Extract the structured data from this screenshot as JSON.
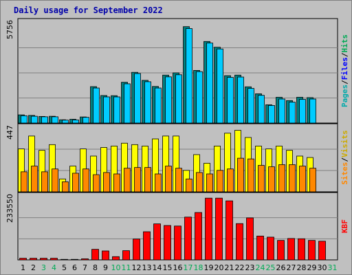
{
  "chart_data": {
    "title": "Daily usage for September 2022",
    "categories": [
      "1",
      "2",
      "3",
      "4",
      "5",
      "6",
      "7",
      "8",
      "9",
      "10",
      "11",
      "12",
      "13",
      "14",
      "15",
      "16",
      "17",
      "18",
      "19",
      "20",
      "21",
      "22",
      "23",
      "24",
      "25",
      "26",
      "27",
      "28",
      "29",
      "30",
      "31"
    ],
    "weekend_days": [
      3,
      4,
      10,
      11,
      17,
      18,
      24,
      25,
      31
    ],
    "panels": [
      {
        "type": "bar",
        "ymax_label": "5756",
        "ylim": [
          0,
          5756
        ],
        "legend": [
          "Pages",
          "/",
          "Files",
          "/",
          "Hits"
        ],
        "legend_colors": [
          "#00aaaa",
          "#000000",
          "#0000ff",
          "#000000",
          "#00aa55"
        ],
        "series": [
          {
            "name": "Hits",
            "color": "#008080",
            "values": [
              470,
              440,
              380,
              390,
              190,
              220,
              350,
              2090,
              1580,
              1570,
              2340,
              2910,
              2450,
              2100,
              2750,
              2880,
              5530,
              3020,
              4680,
              4350,
              2720,
              2750,
              2080,
              1680,
              1050,
              1480,
              1290,
              1480,
              1460,
              0,
              0
            ]
          },
          {
            "name": "Files",
            "color": "#00ccff",
            "values": [
              420,
              390,
              360,
              360,
              170,
              180,
              330,
              2010,
              1500,
              1500,
              2250,
              2840,
              2370,
              2010,
              2650,
              2770,
              5420,
              2950,
              4590,
              4250,
              2620,
              2640,
              1990,
              1590,
              1010,
              1380,
              1200,
              1360,
              1380,
              0,
              0
            ]
          }
        ]
      },
      {
        "type": "bar",
        "ymax_label": "447",
        "ylim": [
          0,
          447
        ],
        "legend": [
          "Sites",
          "/",
          "Visits"
        ],
        "legend_colors": [
          "#ff8800",
          "#000000",
          "#ccaa00"
        ],
        "series": [
          {
            "name": "Visits",
            "color": "#ffff00",
            "values": [
              300,
              390,
              290,
              330,
              90,
              180,
              300,
              250,
              310,
              320,
              340,
              330,
              320,
              370,
              390,
              390,
              150,
              260,
              200,
              320,
              410,
              430,
              380,
              320,
              300,
              320,
              290,
              250,
              240,
              0,
              0
            ]
          },
          {
            "name": "Sites",
            "color": "#ff8800",
            "values": [
              140,
              180,
              140,
              160,
              70,
              130,
              160,
              120,
              135,
              125,
              165,
              170,
              170,
              125,
              180,
              165,
              90,
              135,
              125,
              150,
              160,
              235,
              230,
              185,
              175,
              190,
              190,
              180,
              165,
              0,
              0
            ]
          }
        ]
      },
      {
        "type": "bar",
        "ymax_label": "233550",
        "ylim": [
          0,
          233550
        ],
        "legend": [
          "KB",
          "F"
        ],
        "legend_colors": [
          "#ff0000",
          "#ff0000"
        ],
        "series": [
          {
            "name": "KB F",
            "color": "#ff0000",
            "values": [
              6000,
              6000,
              6000,
              6000,
              2000,
              2000,
              4000,
              39000,
              33000,
              12000,
              34000,
              77000,
              104000,
              133000,
              127000,
              125000,
              158000,
              175000,
              228000,
              228000,
              218000,
              134000,
              155000,
              88000,
              84000,
              72000,
              79000,
              78000,
              72000,
              69000,
              0
            ]
          }
        ]
      }
    ]
  }
}
